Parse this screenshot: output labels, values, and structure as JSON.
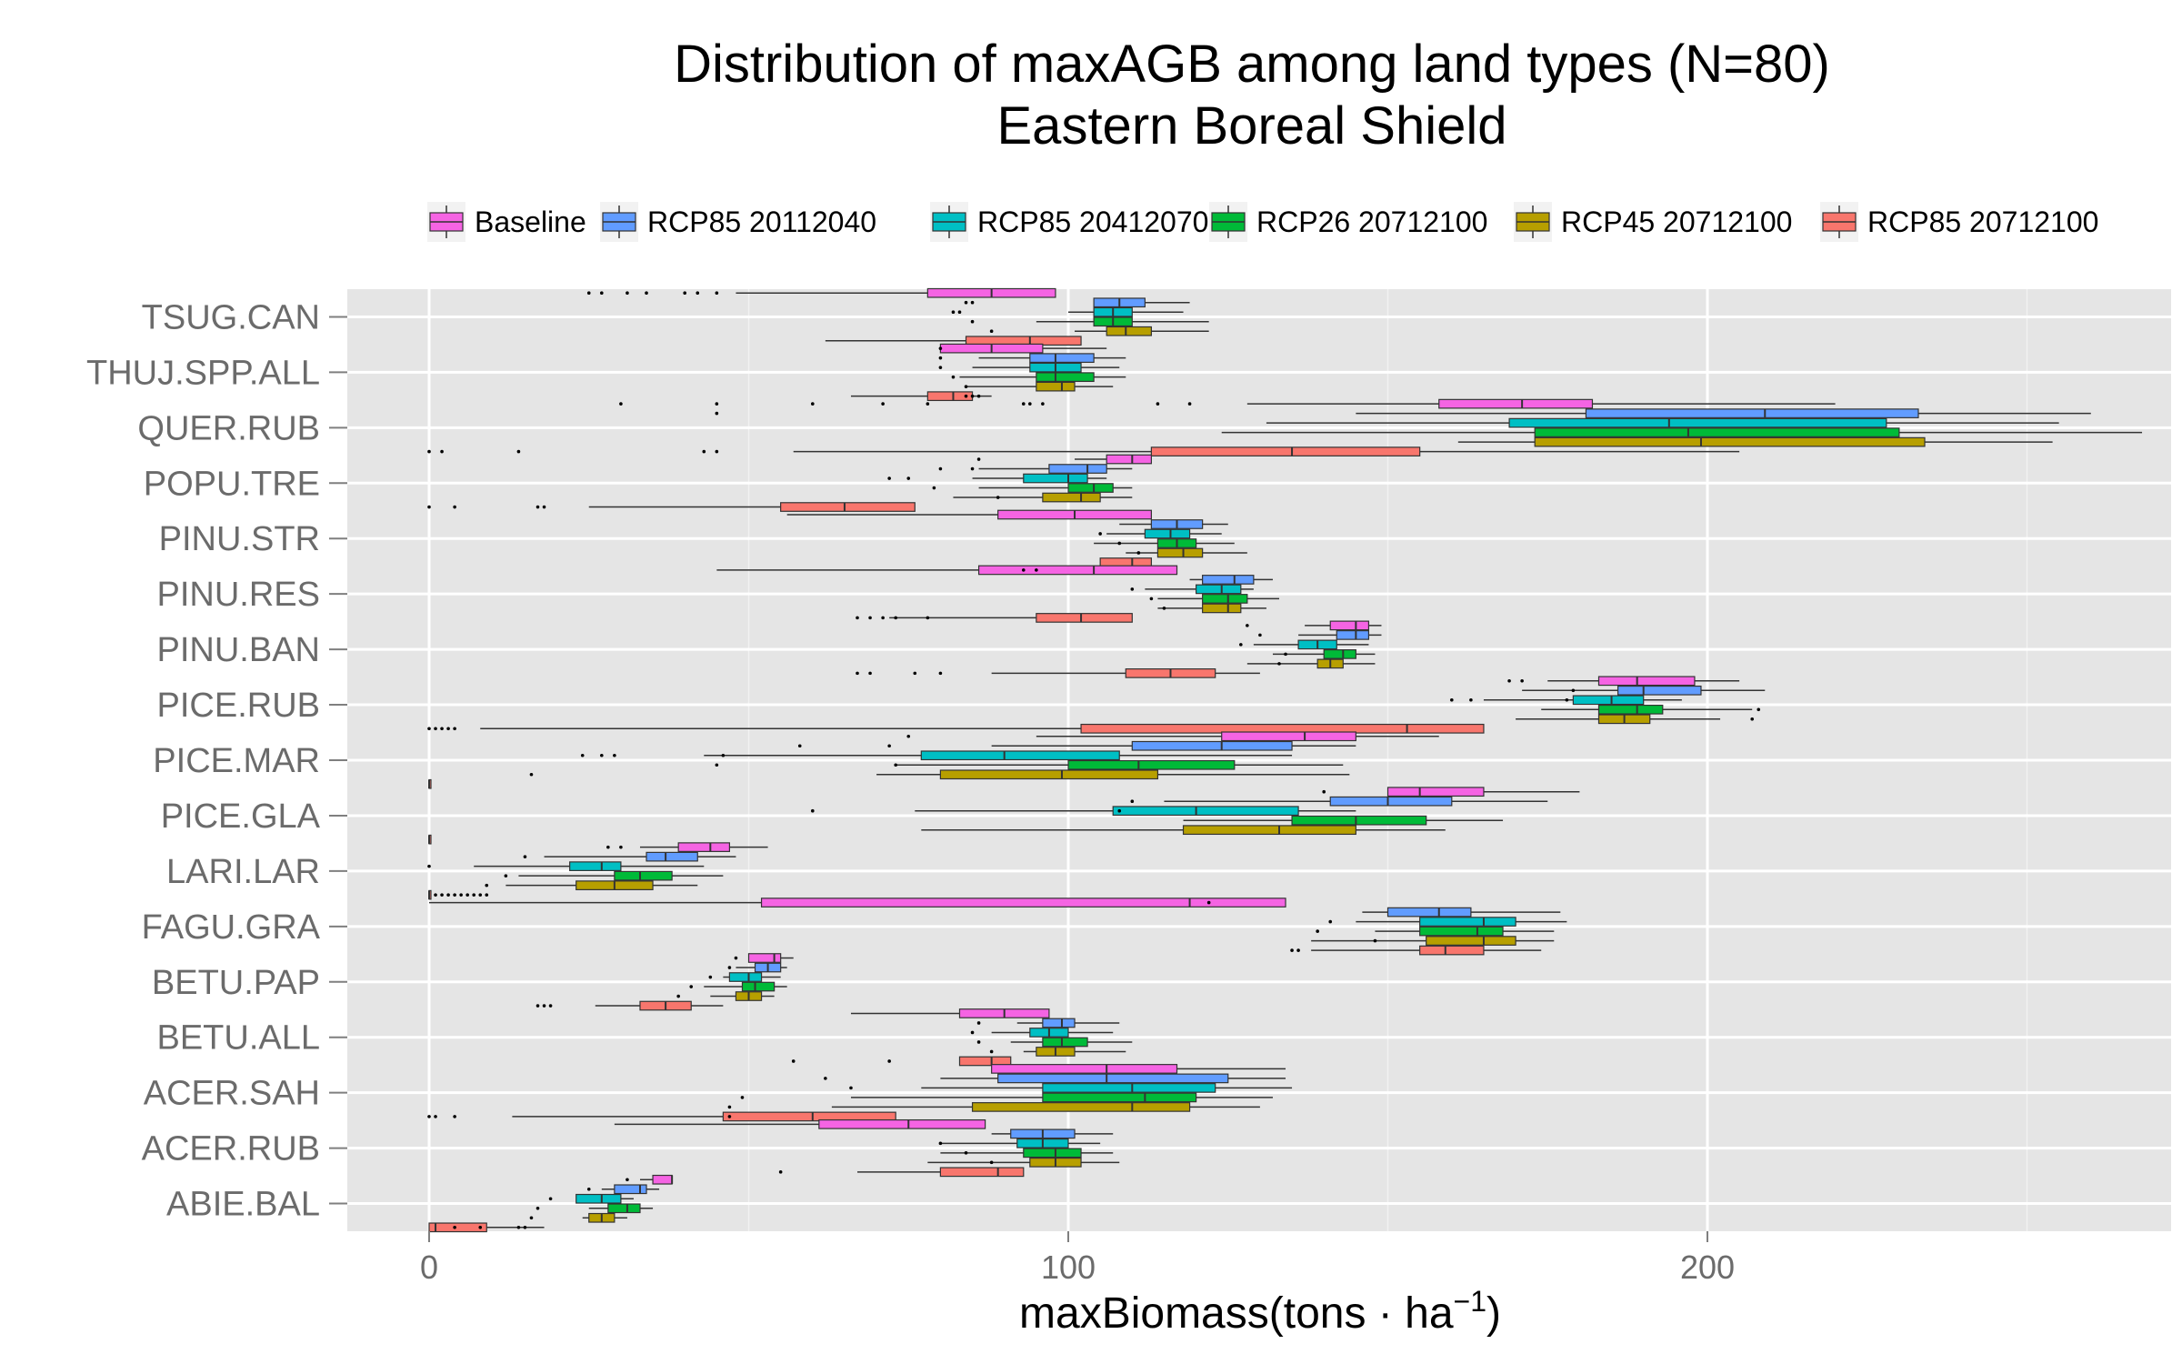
{
  "chart_data": {
    "type": "boxplot",
    "title": "Distribution of maxAGB among land types (N=80)",
    "subtitle": "Eastern Boreal Shield",
    "xlabel": "maxBiomass(tons · ha",
    "xlabel_superscript": "−1",
    "xlabel_close": ")",
    "xlim": [
      -12.5,
      273
    ],
    "x_ticks": [
      0,
      100,
      200
    ],
    "x_tick_labels": [
      "0",
      "100",
      "200"
    ],
    "grid": true,
    "legend_position": "top",
    "orientation": "horizontal",
    "series": [
      {
        "name": "Baseline",
        "color": "#F564E3"
      },
      {
        "name": "RCP85 20112040",
        "color": "#619CFF"
      },
      {
        "name": "RCP85 20412070",
        "color": "#00BFC4"
      },
      {
        "name": "RCP26 20712100",
        "color": "#00BA38"
      },
      {
        "name": "RCP45 20712100",
        "color": "#B79F00"
      },
      {
        "name": "RCP85 20712100",
        "color": "#F8766D"
      }
    ],
    "categories": [
      "TSUG.CAN",
      "THUJ.SPP.ALL",
      "QUER.RUB",
      "POPU.TRE",
      "PINU.STR",
      "PINU.RES",
      "PINU.BAN",
      "PICE.RUB",
      "PICE.MAR",
      "PICE.GLA",
      "LARI.LAR",
      "FAGU.GRA",
      "BETU.PAP",
      "BETU.ALL",
      "ACER.SAH",
      "ACER.RUB",
      "ABIE.BAL"
    ],
    "boxes": {
      "TSUG.CAN": [
        [
          48,
          78,
          88,
          98,
          98,
          [
            25,
            27,
            31,
            34,
            40,
            42,
            45
          ]
        ],
        [
          104,
          104,
          108,
          112,
          119,
          [
            84,
            85
          ]
        ],
        [
          100,
          104,
          107,
          110,
          118,
          [
            82,
            83
          ]
        ],
        [
          95,
          104,
          107,
          110,
          122,
          [
            85
          ]
        ],
        [
          101,
          106,
          109,
          113,
          122,
          [
            88
          ]
        ],
        [
          62,
          84,
          94,
          102,
          102,
          []
        ]
      ],
      "THUJ.SPP.ALL": [
        [
          80,
          80,
          88,
          96,
          106,
          [
            80
          ]
        ],
        [
          86,
          94,
          98,
          104,
          109,
          [
            80
          ]
        ],
        [
          85,
          94,
          98,
          102,
          108,
          [
            80
          ]
        ],
        [
          83,
          95,
          98,
          104,
          109,
          [
            82
          ]
        ],
        [
          84,
          95,
          99,
          101,
          107,
          [
            84
          ]
        ],
        [
          66,
          78,
          82,
          85,
          88,
          [
            84,
            85,
            86
          ]
        ]
      ],
      "QUER.RUB": [
        [
          128,
          158,
          171,
          182,
          220,
          [
            30,
            45,
            60,
            71,
            78,
            93,
            94,
            96,
            114,
            119
          ]
        ],
        [
          145,
          181,
          209,
          233,
          260,
          [
            45
          ]
        ],
        [
          131,
          169,
          194,
          228,
          255,
          []
        ],
        [
          124,
          173,
          197,
          230,
          268,
          []
        ],
        [
          161,
          173,
          199,
          234,
          254,
          []
        ],
        [
          57,
          113,
          135,
          155,
          205,
          [
            0,
            2,
            14,
            43,
            45
          ]
        ]
      ],
      "POPU.TRE": [
        [
          101,
          106,
          110,
          113,
          113,
          [
            86
          ]
        ],
        [
          86,
          97,
          103,
          106,
          110,
          [
            80,
            85
          ]
        ],
        [
          85,
          93,
          100,
          103,
          106,
          [
            72,
            75
          ]
        ],
        [
          86,
          100,
          104,
          107,
          110,
          [
            79
          ]
        ],
        [
          82,
          96,
          102,
          105,
          110,
          [
            89
          ]
        ],
        [
          25,
          55,
          65,
          76,
          76,
          [
            0,
            4,
            17,
            18
          ]
        ]
      ],
      "PINU.STR": [
        [
          56,
          89,
          101,
          113,
          113,
          []
        ],
        [
          108,
          113,
          117,
          121,
          125,
          []
        ],
        [
          106,
          112,
          116,
          119,
          124,
          [
            105
          ]
        ],
        [
          104,
          114,
          117,
          120,
          126,
          [
            108
          ]
        ],
        [
          109,
          114,
          118,
          121,
          128,
          [
            111
          ]
        ],
        [
          105,
          105,
          110,
          113,
          113,
          []
        ]
      ],
      "PINU.RES": [
        [
          45,
          86,
          104,
          117,
          117,
          [
            93,
            95
          ]
        ],
        [
          119,
          121,
          126,
          129,
          132,
          []
        ],
        [
          112,
          120,
          124,
          127,
          129,
          [
            110
          ]
        ],
        [
          114,
          121,
          125,
          128,
          133,
          [
            113
          ]
        ],
        [
          114,
          121,
          125,
          127,
          131,
          [
            115
          ]
        ],
        [
          72,
          95,
          102,
          110,
          110,
          [
            67,
            69,
            71,
            73,
            78
          ]
        ]
      ],
      "PINU.BAN": [
        [
          137,
          141,
          145,
          147,
          149,
          [
            128
          ]
        ],
        [
          136,
          142,
          145,
          147,
          149,
          [
            130
          ]
        ],
        [
          129,
          136,
          139,
          142,
          147,
          [
            127
          ]
        ],
        [
          132,
          140,
          143,
          145,
          148,
          [
            134
          ]
        ],
        [
          128,
          139,
          141,
          143,
          148,
          [
            133
          ]
        ],
        [
          88,
          109,
          116,
          123,
          130,
          [
            67,
            69,
            76,
            80
          ]
        ]
      ],
      "PICE.RUB": [
        [
          175,
          183,
          189,
          198,
          205,
          [
            169,
            171
          ]
        ],
        [
          171,
          186,
          190,
          199,
          209,
          [
            179
          ]
        ],
        [
          165,
          179,
          185,
          190,
          196,
          [
            178,
            163,
            160
          ]
        ],
        [
          174,
          183,
          189,
          193,
          207,
          [
            208
          ]
        ],
        [
          170,
          183,
          187,
          191,
          202,
          [
            207
          ]
        ],
        [
          8,
          102,
          153,
          165,
          165,
          [
            0,
            1,
            2,
            3,
            4
          ]
        ]
      ],
      "PICE.MAR": [
        [
          95,
          124,
          137,
          145,
          158,
          [
            75
          ]
        ],
        [
          88,
          110,
          124,
          135,
          145,
          [
            58,
            72
          ]
        ],
        [
          43,
          77,
          90,
          108,
          135,
          [
            46,
            24,
            27,
            29
          ]
        ],
        [
          73,
          100,
          111,
          126,
          143,
          [
            45,
            73
          ]
        ],
        [
          70,
          80,
          99,
          114,
          144,
          [
            16
          ]
        ],
        [
          0,
          0,
          0,
          0,
          0,
          []
        ]
      ],
      "PICE.GLA": [
        [
          150,
          150,
          155,
          165,
          180,
          [
            140
          ]
        ],
        [
          115,
          141,
          150,
          160,
          175,
          [
            110
          ]
        ],
        [
          76,
          107,
          120,
          136,
          145,
          [
            108,
            60
          ]
        ],
        [
          118,
          135,
          145,
          156,
          168,
          []
        ],
        [
          77,
          118,
          133,
          145,
          159,
          []
        ],
        [
          0,
          0,
          0,
          0,
          0,
          []
        ]
      ],
      "LARI.LAR": [
        [
          33,
          39,
          44,
          47,
          53,
          [
            28,
            30
          ]
        ],
        [
          18,
          34,
          37,
          42,
          48,
          [
            15
          ]
        ],
        [
          7,
          22,
          27,
          30,
          43,
          [
            0
          ]
        ],
        [
          14,
          29,
          33,
          38,
          46,
          [
            12
          ]
        ],
        [
          12,
          23,
          29,
          35,
          42,
          [
            9
          ]
        ],
        [
          0,
          0,
          0,
          0,
          0,
          [
            1,
            2,
            3,
            4,
            5,
            6,
            7,
            8,
            9
          ]
        ]
      ],
      "FAGU.GRA": [
        [
          0,
          52,
          119,
          134,
          134,
          [
            122
          ]
        ],
        [
          146,
          150,
          158,
          163,
          177,
          []
        ],
        [
          145,
          155,
          165,
          170,
          178,
          [
            141
          ]
        ],
        [
          148,
          155,
          164,
          168,
          176,
          [
            139
          ]
        ],
        [
          138,
          156,
          165,
          170,
          176,
          [
            148
          ]
        ],
        [
          138,
          155,
          159,
          165,
          174,
          [
            135,
            136
          ]
        ]
      ],
      "BETU.PAP": [
        [
          50,
          50,
          54,
          55,
          57,
          [
            48
          ]
        ],
        [
          48,
          51,
          53,
          55,
          56,
          [
            47
          ]
        ],
        [
          46,
          47,
          50,
          52,
          55,
          [
            44
          ]
        ],
        [
          43,
          49,
          51,
          54,
          56,
          [
            41
          ]
        ],
        [
          44,
          48,
          50,
          52,
          54,
          [
            39
          ]
        ],
        [
          26,
          33,
          37,
          41,
          46,
          [
            17,
            18,
            19
          ]
        ]
      ],
      "BETU.ALL": [
        [
          66,
          83,
          90,
          97,
          97,
          []
        ],
        [
          92,
          96,
          99,
          101,
          108,
          [
            86
          ]
        ],
        [
          88,
          94,
          97,
          100,
          107,
          [
            85
          ]
        ],
        [
          91,
          96,
          99,
          103,
          110,
          [
            86
          ]
        ],
        [
          93,
          95,
          98,
          101,
          109,
          [
            88
          ]
        ],
        [
          83,
          83,
          88,
          91,
          91,
          [
            57,
            72
          ]
        ]
      ],
      "ACER.SAH": [
        [
          90,
          88,
          106,
          117,
          134,
          []
        ],
        [
          80,
          89,
          106,
          125,
          134,
          [
            62
          ]
        ],
        [
          77,
          96,
          110,
          123,
          135,
          [
            66
          ]
        ],
        [
          66,
          96,
          112,
          120,
          132,
          [
            49
          ]
        ],
        [
          63,
          85,
          110,
          119,
          130,
          [
            47
          ]
        ],
        [
          13,
          46,
          60,
          73,
          73,
          [
            0,
            1,
            4,
            47
          ]
        ]
      ],
      "ACER.RUB": [
        [
          29,
          61,
          75,
          87,
          87,
          []
        ],
        [
          88,
          91,
          96,
          101,
          107,
          []
        ],
        [
          80,
          92,
          96,
          100,
          105,
          [
            80
          ]
        ],
        [
          80,
          93,
          98,
          102,
          107,
          [
            84
          ]
        ],
        [
          78,
          94,
          98,
          102,
          108,
          [
            88
          ]
        ],
        [
          67,
          80,
          89,
          93,
          93,
          [
            55
          ]
        ]
      ],
      "ABIE.BAL": [
        [
          33,
          35,
          38,
          38,
          38,
          [
            31
          ]
        ],
        [
          27,
          29,
          33,
          34,
          36,
          [
            25
          ]
        ],
        [
          23,
          23,
          27,
          30,
          32,
          [
            19
          ]
        ],
        [
          25,
          28,
          31,
          33,
          35,
          [
            17
          ]
        ],
        [
          24,
          25,
          27,
          29,
          31,
          [
            16
          ]
        ],
        [
          0,
          0,
          1,
          9,
          18,
          [
            4,
            8,
            14,
            15
          ]
        ]
      ]
    }
  }
}
